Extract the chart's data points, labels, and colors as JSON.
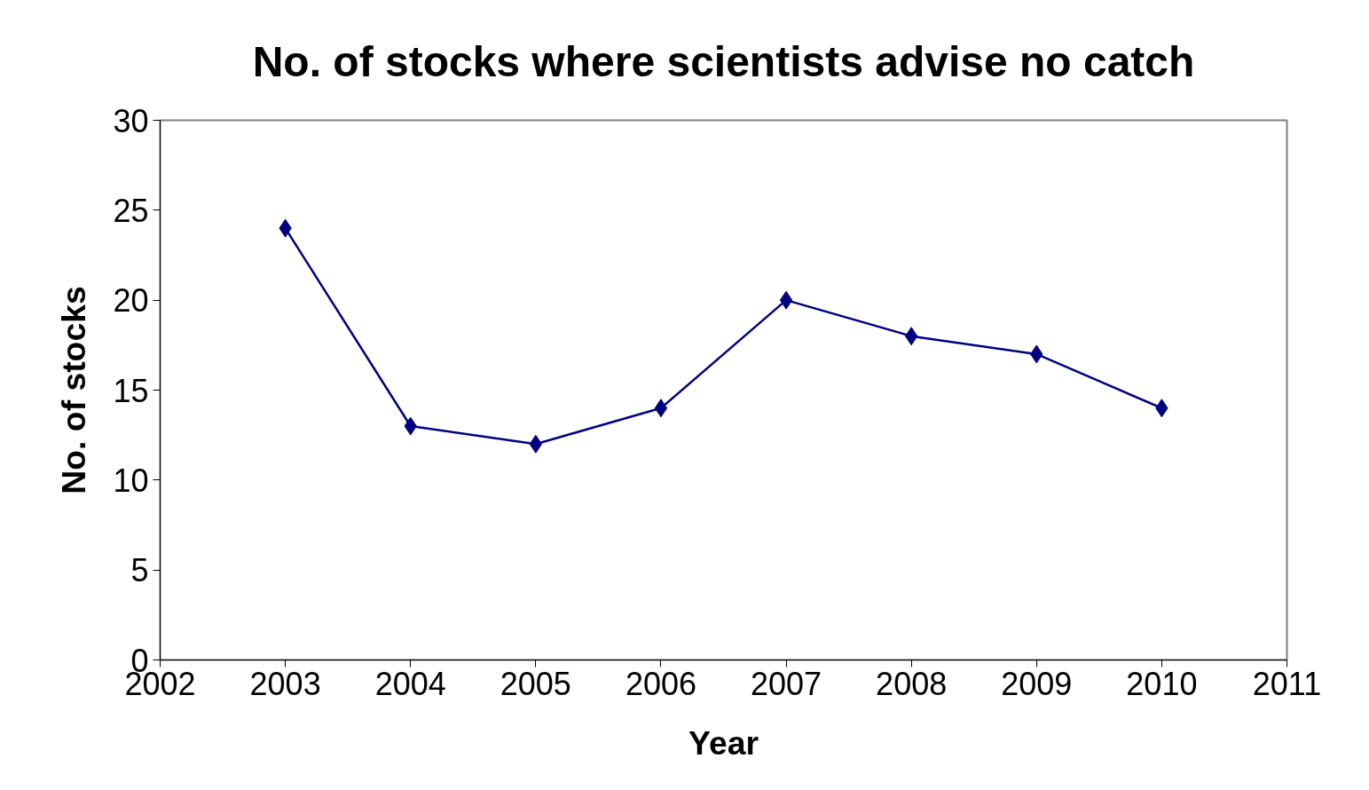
{
  "chart_data": {
    "type": "line",
    "title": "No. of stocks where scientists advise no catch",
    "xlabel": "Year",
    "ylabel": "No. of stocks",
    "x": [
      2003,
      2004,
      2005,
      2006,
      2007,
      2008,
      2009,
      2010
    ],
    "series": [
      {
        "color": "#000080",
        "values": [
          24,
          13,
          12,
          14,
          20,
          18,
          17,
          14
        ]
      }
    ],
    "xlim": [
      2002,
      2011
    ],
    "xticks": [
      2002,
      2003,
      2004,
      2005,
      2006,
      2007,
      2008,
      2009,
      2010,
      2011
    ],
    "ylim": [
      0,
      30
    ],
    "yticks": [
      0,
      5,
      10,
      15,
      20,
      25,
      30
    ],
    "grid": false,
    "marker": "diamond",
    "line_style": "solid"
  }
}
